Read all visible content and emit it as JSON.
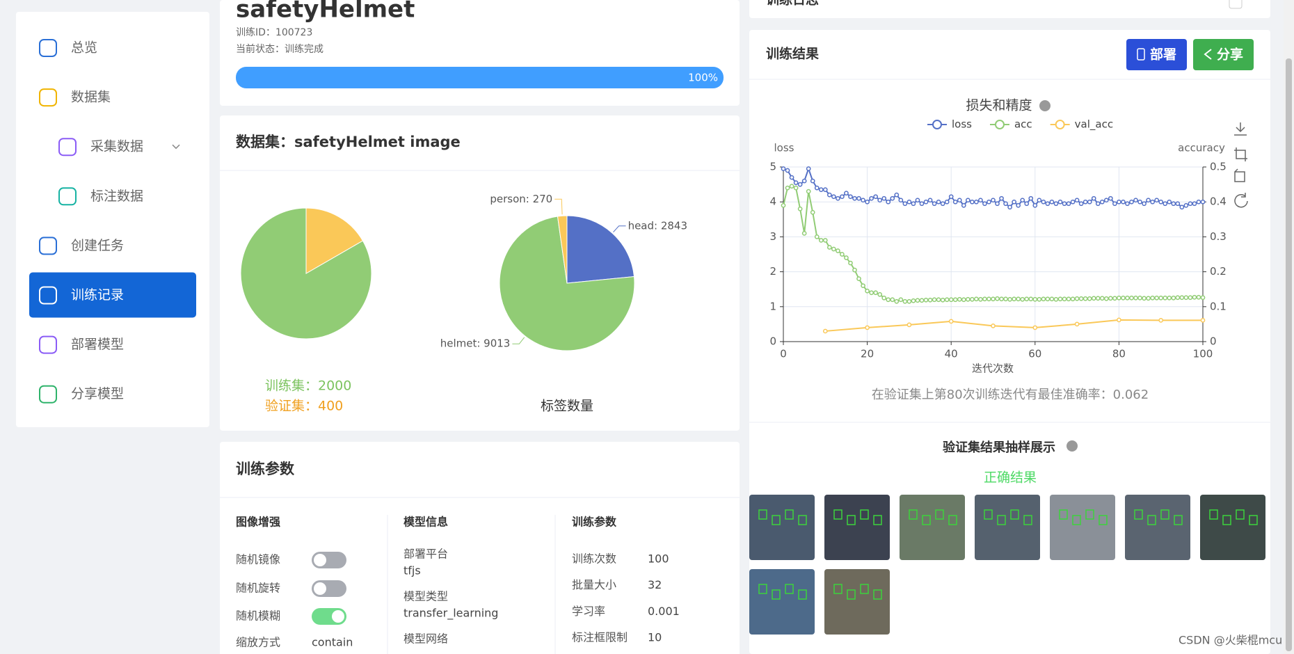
{
  "sidebar": {
    "items": [
      "总览",
      "数据集",
      "采集数据",
      "标注数据",
      "创建任务",
      "训练记录",
      "部署模型",
      "分享模型"
    ],
    "active": 5
  },
  "header": {
    "title": "safetyHelmet",
    "id_line": "训练ID：100723",
    "status_line": "当前状态：训练完成",
    "progress": 100,
    "progress_label": "100%"
  },
  "dataset": {
    "title": "数据集：safetyHelmet image"
  },
  "chart_data": [
    {
      "type": "pie",
      "values": [
        2000,
        400
      ],
      "value_labels": [
        "训练集：2000",
        "验证集：400"
      ],
      "colors": [
        "#91cc75",
        "#fac858"
      ],
      "direction": "counterclockwise"
    },
    {
      "type": "pie",
      "title": "标签数量",
      "values": [
        2843,
        9013,
        270
      ],
      "value_labels": [
        "head: 2843",
        "helmet: 9013",
        "person: 270"
      ],
      "colors": [
        "#5470c6",
        "#91cc75",
        "#fac858"
      ],
      "direction": "clockwise"
    },
    {
      "type": "line",
      "title": "损失和精度",
      "xlabel": "迭代次数",
      "ylabel": "loss",
      "y2label": "accuracy",
      "x": [
        0,
        1,
        2,
        3,
        4,
        5,
        6,
        7,
        8,
        9,
        10,
        11,
        12,
        13,
        14,
        15,
        16,
        17,
        18,
        19,
        20,
        21,
        22,
        23,
        24,
        25,
        26,
        27,
        28,
        29,
        30,
        31,
        32,
        33,
        34,
        35,
        36,
        37,
        38,
        39,
        40,
        41,
        42,
        43,
        44,
        45,
        46,
        47,
        48,
        49,
        50,
        51,
        52,
        53,
        54,
        55,
        56,
        57,
        58,
        59,
        60,
        61,
        62,
        63,
        64,
        65,
        66,
        67,
        68,
        69,
        70,
        71,
        72,
        73,
        74,
        75,
        76,
        77,
        78,
        79,
        80,
        81,
        82,
        83,
        84,
        85,
        86,
        87,
        88,
        89,
        90,
        91,
        92,
        93,
        94,
        95,
        96,
        97,
        98,
        99,
        100
      ],
      "xlim": [
        0,
        100
      ],
      "xticks": [
        0,
        20,
        40,
        60,
        80,
        100
      ],
      "ylim": [
        0,
        5
      ],
      "yticks": [
        0,
        1,
        2,
        3,
        4,
        5
      ],
      "y2lim": [
        0,
        0.5
      ],
      "y2ticks": [
        0,
        0.1,
        0.2,
        0.3,
        0.4,
        0.5
      ],
      "grid": true,
      "series": [
        {
          "name": "loss",
          "color": "#5470c6",
          "values": [
            4.95,
            4.9,
            4.7,
            4.55,
            4.5,
            4.6,
            4.95,
            4.6,
            4.4,
            4.35,
            4.35,
            4.2,
            4.15,
            4.1,
            4.15,
            4.25,
            4.15,
            4.1,
            4.1,
            4.05,
            4.0,
            4.1,
            4.15,
            4.05,
            4.1,
            4.0,
            4.1,
            4.2,
            4.05,
            3.95,
            4.0,
            3.95,
            4.05,
            3.95,
            4.0,
            4.05,
            3.95,
            4.0,
            3.95,
            4.0,
            4.15,
            4.0,
            4.05,
            3.9,
            4.05,
            4.0,
            4.0,
            4.05,
            3.95,
            4.0,
            4.05,
            3.95,
            4.1,
            3.95,
            3.85,
            4.0,
            3.9,
            4.05,
            3.95,
            4.1,
            3.9,
            4.05,
            4.0,
            3.95,
            4.0,
            3.95,
            4.0,
            3.95,
            3.95,
            4.0,
            4.05,
            3.95,
            4.0,
            4.0,
            4.1,
            3.95,
            4.0,
            4.05,
            4.1,
            3.95,
            4.0,
            4.0,
            3.95,
            4.0,
            4.05,
            4.0,
            3.95,
            4.05,
            4.0,
            4.05,
            4.0,
            3.95,
            4.0,
            3.95,
            3.95,
            3.85,
            3.9,
            3.95,
            3.95,
            4.0,
            4.0
          ]
        },
        {
          "name": "acc",
          "color": "#91cc75",
          "axis": "y2",
          "values": [
            0.39,
            0.44,
            0.445,
            0.44,
            0.38,
            0.31,
            0.43,
            0.37,
            0.3,
            0.29,
            0.29,
            0.27,
            0.265,
            0.26,
            0.25,
            0.24,
            0.225,
            0.205,
            0.18,
            0.16,
            0.145,
            0.14,
            0.14,
            0.135,
            0.125,
            0.12,
            0.12,
            0.115,
            0.12,
            0.115,
            0.115,
            0.117,
            0.118,
            0.118,
            0.119,
            0.119,
            0.12,
            0.12,
            0.119,
            0.12,
            0.12,
            0.12,
            0.121,
            0.12,
            0.121,
            0.121,
            0.122,
            0.121,
            0.122,
            0.122,
            0.122,
            0.123,
            0.122,
            0.122,
            0.121,
            0.122,
            0.122,
            0.121,
            0.122,
            0.122,
            0.121,
            0.121,
            0.122,
            0.122,
            0.122,
            0.121,
            0.122,
            0.122,
            0.122,
            0.122,
            0.123,
            0.123,
            0.123,
            0.123,
            0.124,
            0.124,
            0.124,
            0.123,
            0.124,
            0.124,
            0.125,
            0.125,
            0.125,
            0.125,
            0.125,
            0.125,
            0.124,
            0.124,
            0.125,
            0.125,
            0.125,
            0.125,
            0.125,
            0.125,
            0.126,
            0.126,
            0.126,
            0.126,
            0.127,
            0.127,
            0.126
          ]
        },
        {
          "name": "val_acc",
          "color": "#fac858",
          "axis": "y2",
          "x": [
            10,
            20,
            30,
            40,
            50,
            60,
            70,
            80,
            90,
            100
          ],
          "values": [
            0.03,
            0.04,
            0.048,
            0.058,
            0.045,
            0.04,
            0.05,
            0.062,
            0.061,
            0.061
          ]
        }
      ]
    }
  ],
  "params": {
    "title": "训练参数",
    "columns": [
      {
        "title": "图像增强",
        "rows": [
          {
            "label": "随机镜像",
            "on": false
          },
          {
            "label": "随机旋转",
            "on": false
          },
          {
            "label": "随机模糊",
            "on": true
          },
          {
            "label": "缩放方式",
            "value": "contain"
          }
        ]
      },
      {
        "title": "模型信息",
        "rows": [
          {
            "label": "部署平台",
            "value": "tfjs"
          },
          {
            "label": "模型类型",
            "value": "transfer_learning"
          },
          {
            "label": "模型网络"
          }
        ]
      },
      {
        "title": "训练参数",
        "rows": [
          {
            "label": "训练次数",
            "value": 100
          },
          {
            "label": "批量大小",
            "value": 32
          },
          {
            "label": "学习率",
            "value": 0.001
          },
          {
            "label": "标注框限制",
            "value": 10
          }
        ]
      }
    ]
  },
  "log": {
    "title": "训练日志"
  },
  "results": {
    "title": "训练结果",
    "buttons": [
      "部署",
      "分享"
    ],
    "best_note": "在验证集上第80次训练迭代有最佳准确率：0.062"
  },
  "samples": {
    "title": "验证集结果抽样展示",
    "subtitle": "正确结果"
  },
  "watermark": "CSDN @火柴棍mcu"
}
